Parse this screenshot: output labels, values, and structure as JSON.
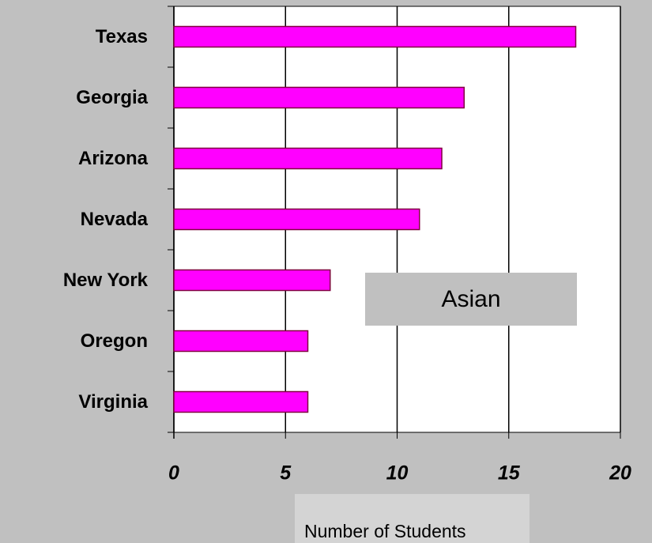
{
  "chart_data": {
    "type": "bar",
    "orientation": "horizontal",
    "categories": [
      "Texas",
      "Georgia",
      "Arizona",
      "Nevada",
      "New York",
      "Oregon",
      "Virginia"
    ],
    "values": [
      18,
      13,
      12,
      11,
      7,
      6,
      6
    ],
    "color": "#ff00ff",
    "xlim": [
      0,
      20
    ],
    "xticks": [
      0,
      5,
      10,
      15,
      20
    ],
    "grid": true,
    "x_label": "Number of Students",
    "annotation": "Asian"
  }
}
